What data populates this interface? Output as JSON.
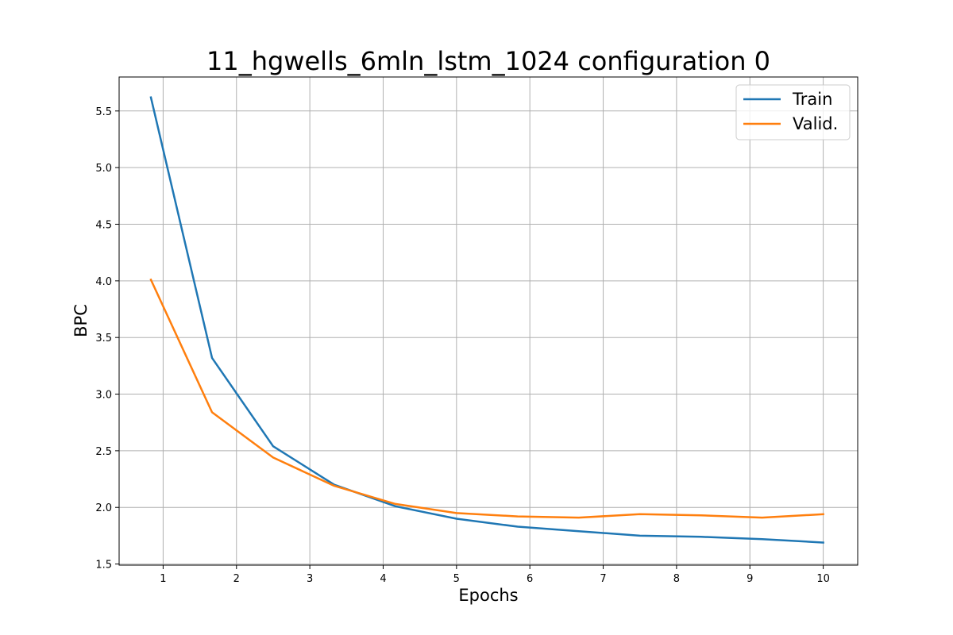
{
  "chart_data": {
    "type": "line",
    "title": "11_hgwells_6mln_lstm_1024 configuration 0",
    "xlabel": "Epochs",
    "ylabel": "BPC",
    "xlim": [
      0.4,
      10.47
    ],
    "ylim": [
      1.49,
      5.8
    ],
    "xticks": [
      1,
      2,
      3,
      4,
      5,
      6,
      7,
      8,
      9,
      10
    ],
    "yticks": [
      1.5,
      2.0,
      2.5,
      3.0,
      3.5,
      4.0,
      4.5,
      5.0,
      5.5
    ],
    "grid": true,
    "legend_position": "top-right",
    "x": [
      0.833,
      1.667,
      2.5,
      3.333,
      4.167,
      5.0,
      5.833,
      6.667,
      7.5,
      8.333,
      9.167,
      10.0
    ],
    "series": [
      {
        "name": "Train",
        "color": "#1f77b4",
        "values": [
          5.62,
          3.32,
          2.54,
          2.2,
          2.01,
          1.9,
          1.83,
          1.79,
          1.75,
          1.74,
          1.72,
          1.69
        ]
      },
      {
        "name": "Valid.",
        "color": "#ff7f0e",
        "values": [
          4.01,
          2.84,
          2.44,
          2.19,
          2.03,
          1.95,
          1.92,
          1.91,
          1.94,
          1.93,
          1.91,
          1.94
        ]
      }
    ]
  }
}
